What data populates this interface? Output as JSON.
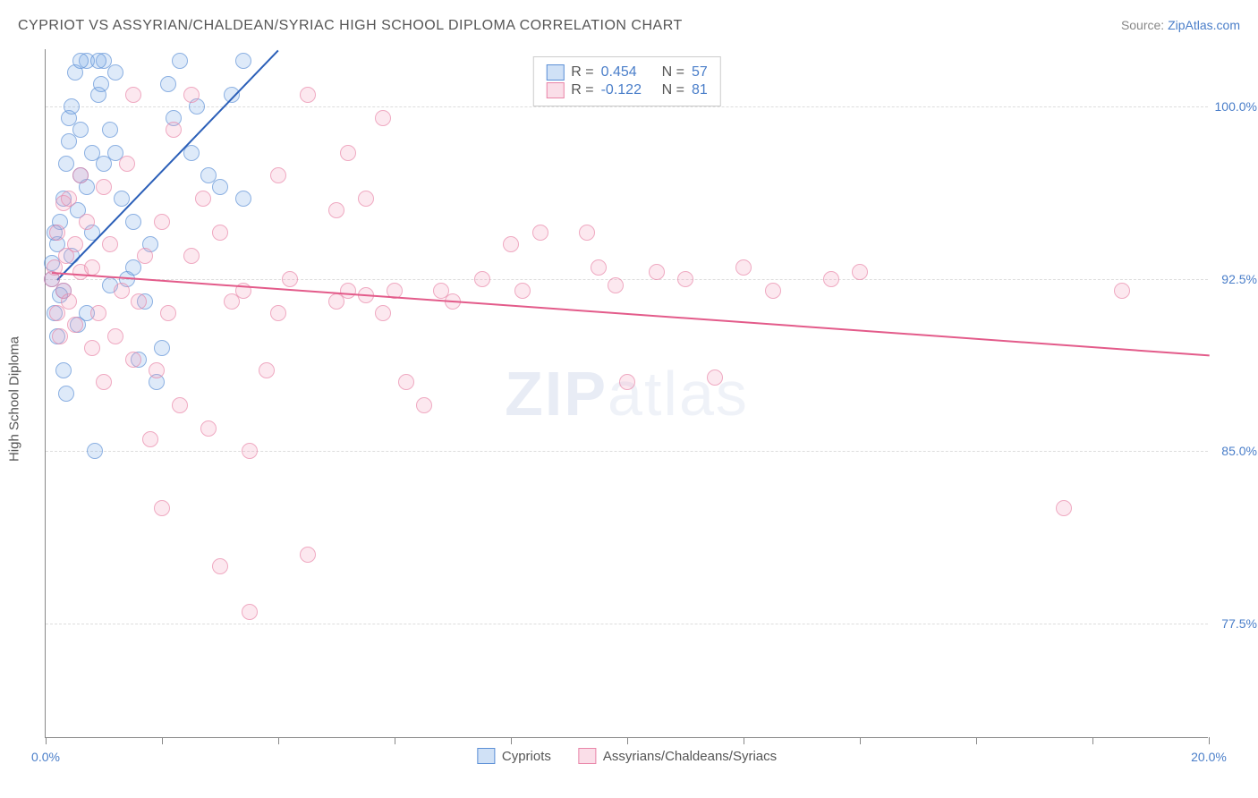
{
  "title": "CYPRIOT VS ASSYRIAN/CHALDEAN/SYRIAC HIGH SCHOOL DIPLOMA CORRELATION CHART",
  "source_label": "Source: ",
  "source_link": "ZipAtlas.com",
  "ylabel": "High School Diploma",
  "xlim": [
    0.0,
    20.0
  ],
  "ylim": [
    72.5,
    102.5
  ],
  "yticks": [
    77.5,
    85.0,
    92.5,
    100.0
  ],
  "ytick_labels": [
    "77.5%",
    "85.0%",
    "92.5%",
    "100.0%"
  ],
  "xtick_positions": [
    0.0,
    2.0,
    4.0,
    6.0,
    8.0,
    10.0,
    12.0,
    14.0,
    16.0,
    18.0,
    20.0
  ],
  "xtick_label_left": "0.0%",
  "xtick_label_right": "20.0%",
  "series": [
    {
      "name": "Cypriots",
      "marker_fill": "rgba(120,170,230,0.35)",
      "marker_stroke": "#5b8fd6",
      "trend_color": "#2b5fb8",
      "r_label": "R =",
      "r_value": "0.454",
      "n_label": "N =",
      "n_value": "57",
      "trend": {
        "x1": 0.2,
        "y1": 92.5,
        "x2": 4.0,
        "y2": 102.5
      },
      "points": [
        [
          0.1,
          92.5
        ],
        [
          0.1,
          93.2
        ],
        [
          0.15,
          91.0
        ],
        [
          0.2,
          94.0
        ],
        [
          0.2,
          90.0
        ],
        [
          0.25,
          95.0
        ],
        [
          0.3,
          96.0
        ],
        [
          0.3,
          92.0
        ],
        [
          0.35,
          97.5
        ],
        [
          0.4,
          98.5
        ],
        [
          0.4,
          99.5
        ],
        [
          0.45,
          100.0
        ],
        [
          0.5,
          101.5
        ],
        [
          0.55,
          95.5
        ],
        [
          0.6,
          97.0
        ],
        [
          0.6,
          99.0
        ],
        [
          0.7,
          102.0
        ],
        [
          0.7,
          96.5
        ],
        [
          0.8,
          98.0
        ],
        [
          0.8,
          94.5
        ],
        [
          0.9,
          100.5
        ],
        [
          0.95,
          101.0
        ],
        [
          1.0,
          97.5
        ],
        [
          1.0,
          102.0
        ],
        [
          1.1,
          99.0
        ],
        [
          1.2,
          98.0
        ],
        [
          1.2,
          101.5
        ],
        [
          1.3,
          96.0
        ],
        [
          1.4,
          92.5
        ],
        [
          1.5,
          93.0
        ],
        [
          1.5,
          95.0
        ],
        [
          1.6,
          89.0
        ],
        [
          1.7,
          91.5
        ],
        [
          1.8,
          94.0
        ],
        [
          1.9,
          88.0
        ],
        [
          2.0,
          89.5
        ],
        [
          2.1,
          101.0
        ],
        [
          2.2,
          99.5
        ],
        [
          2.3,
          102.0
        ],
        [
          2.5,
          98.0
        ],
        [
          2.6,
          100.0
        ],
        [
          2.8,
          97.0
        ],
        [
          3.0,
          96.5
        ],
        [
          3.2,
          100.5
        ],
        [
          3.4,
          96.0
        ],
        [
          3.4,
          102.0
        ],
        [
          0.6,
          102.0
        ],
        [
          0.9,
          102.0
        ],
        [
          0.3,
          88.5
        ],
        [
          0.35,
          87.5
        ],
        [
          0.15,
          94.5
        ],
        [
          0.25,
          91.8
        ],
        [
          0.45,
          93.5
        ],
        [
          0.55,
          90.5
        ],
        [
          0.85,
          85.0
        ],
        [
          0.7,
          91.0
        ],
        [
          1.1,
          92.2
        ]
      ]
    },
    {
      "name": "Assyrians/Chaldeans/Syriacs",
      "marker_fill": "rgba(240,160,190,0.35)",
      "marker_stroke": "#e985a8",
      "trend_color": "#e35b8a",
      "r_label": "R =",
      "r_value": "-0.122",
      "n_label": "N =",
      "n_value": "81",
      "trend": {
        "x1": 0.1,
        "y1": 92.8,
        "x2": 20.0,
        "y2": 89.2
      },
      "points": [
        [
          0.1,
          92.5
        ],
        [
          0.15,
          93.0
        ],
        [
          0.2,
          91.0
        ],
        [
          0.2,
          94.5
        ],
        [
          0.25,
          90.0
        ],
        [
          0.3,
          92.0
        ],
        [
          0.3,
          95.8
        ],
        [
          0.35,
          93.5
        ],
        [
          0.4,
          91.5
        ],
        [
          0.4,
          96.0
        ],
        [
          0.5,
          94.0
        ],
        [
          0.5,
          90.5
        ],
        [
          0.6,
          97.0
        ],
        [
          0.6,
          92.8
        ],
        [
          0.7,
          95.0
        ],
        [
          0.8,
          93.0
        ],
        [
          0.8,
          89.5
        ],
        [
          0.9,
          91.0
        ],
        [
          1.0,
          96.5
        ],
        [
          1.0,
          88.0
        ],
        [
          1.1,
          94.0
        ],
        [
          1.2,
          90.0
        ],
        [
          1.3,
          92.0
        ],
        [
          1.4,
          97.5
        ],
        [
          1.5,
          100.5
        ],
        [
          1.5,
          89.0
        ],
        [
          1.6,
          91.5
        ],
        [
          1.7,
          93.5
        ],
        [
          1.8,
          85.5
        ],
        [
          1.9,
          88.5
        ],
        [
          2.0,
          82.5
        ],
        [
          2.0,
          95.0
        ],
        [
          2.1,
          91.0
        ],
        [
          2.2,
          99.0
        ],
        [
          2.3,
          87.0
        ],
        [
          2.5,
          100.5
        ],
        [
          2.5,
          93.5
        ],
        [
          2.7,
          96.0
        ],
        [
          2.8,
          86.0
        ],
        [
          3.0,
          80.0
        ],
        [
          3.0,
          94.5
        ],
        [
          3.2,
          91.5
        ],
        [
          3.4,
          92.0
        ],
        [
          3.5,
          85.0
        ],
        [
          3.5,
          78.0
        ],
        [
          3.8,
          88.5
        ],
        [
          4.0,
          97.0
        ],
        [
          4.0,
          91.0
        ],
        [
          4.2,
          92.5
        ],
        [
          4.5,
          100.5
        ],
        [
          4.5,
          80.5
        ],
        [
          5.0,
          95.5
        ],
        [
          5.0,
          91.5
        ],
        [
          5.2,
          98.0
        ],
        [
          5.2,
          92.0
        ],
        [
          5.5,
          96.0
        ],
        [
          5.5,
          91.8
        ],
        [
          5.8,
          99.5
        ],
        [
          5.8,
          91.0
        ],
        [
          6.0,
          92.0
        ],
        [
          6.2,
          88.0
        ],
        [
          6.5,
          87.0
        ],
        [
          6.8,
          92.0
        ],
        [
          7.0,
          91.5
        ],
        [
          7.5,
          92.5
        ],
        [
          8.0,
          94.0
        ],
        [
          8.2,
          92.0
        ],
        [
          8.5,
          94.5
        ],
        [
          9.3,
          94.5
        ],
        [
          9.5,
          93.0
        ],
        [
          9.8,
          92.2
        ],
        [
          10.0,
          88.0
        ],
        [
          10.5,
          92.8
        ],
        [
          11.0,
          92.5
        ],
        [
          11.5,
          88.2
        ],
        [
          12.0,
          93.0
        ],
        [
          12.5,
          92.0
        ],
        [
          13.5,
          92.5
        ],
        [
          14.0,
          92.8
        ],
        [
          17.5,
          82.5
        ],
        [
          18.5,
          92.0
        ]
      ]
    }
  ],
  "watermark": {
    "zip": "ZIP",
    "atlas": "atlas"
  }
}
